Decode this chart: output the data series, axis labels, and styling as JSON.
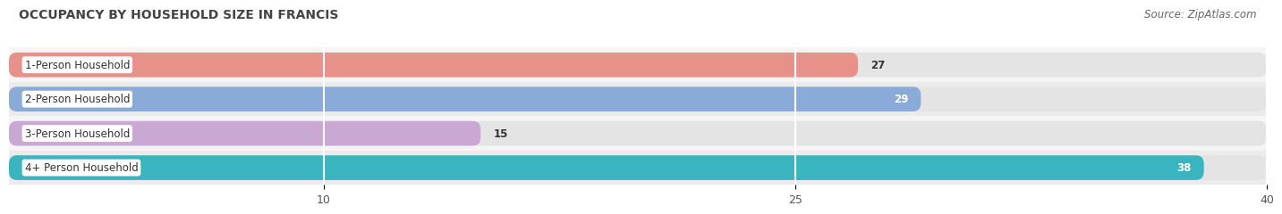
{
  "title": "OCCUPANCY BY HOUSEHOLD SIZE IN FRANCIS",
  "source": "Source: ZipAtlas.com",
  "categories": [
    "1-Person Household",
    "2-Person Household",
    "3-Person Household",
    "4+ Person Household"
  ],
  "values": [
    27,
    29,
    15,
    38
  ],
  "bar_colors": [
    "#e8918a",
    "#8aaad8",
    "#c9a8d4",
    "#3ab5c0"
  ],
  "xlim": [
    0,
    40
  ],
  "xticks": [
    10,
    25,
    40
  ],
  "value_label_colors": [
    "#333333",
    "#ffffff",
    "#333333",
    "#ffffff"
  ],
  "value_label_inside": [
    false,
    true,
    false,
    true
  ],
  "background_color": "#ffffff",
  "row_bg_color": "#f0f0f0",
  "bar_bg_color": "#e4e4e4",
  "title_fontsize": 10,
  "source_fontsize": 8.5,
  "bar_height": 0.72,
  "figsize": [
    14.06,
    2.33
  ]
}
